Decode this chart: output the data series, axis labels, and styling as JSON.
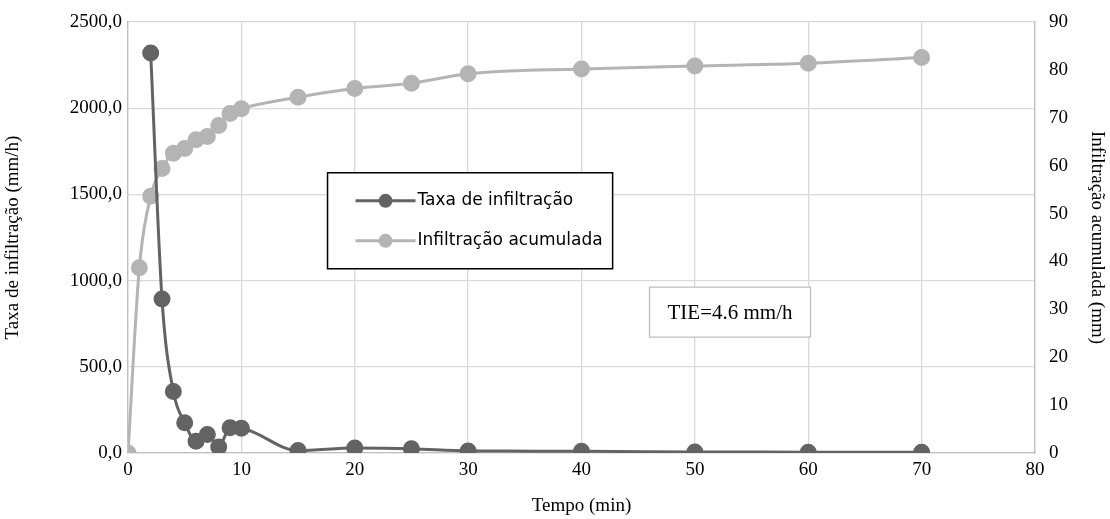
{
  "chart_data": {
    "type": "line",
    "xlabel": "Tempo (min)",
    "ylabel": "Taxa de infiltração (mm/h)",
    "y2label": "Infiltração acumulada (mm)",
    "x": [
      0,
      1,
      2,
      3,
      4,
      5,
      6,
      7,
      8,
      9,
      10,
      15,
      20,
      25,
      30,
      40,
      50,
      60,
      70
    ],
    "series": [
      {
        "name": "Taxa de infiltração",
        "color": "#636363",
        "x": [
          2,
          3,
          4,
          5,
          6,
          7,
          8,
          9,
          10,
          15,
          20,
          25,
          30,
          40,
          50,
          60,
          70
        ],
        "values": [
          2320,
          893,
          357,
          176,
          68,
          107,
          35,
          146,
          143,
          14,
          29,
          25,
          12,
          10,
          6,
          5,
          5
        ]
      },
      {
        "name": "Infiltração acumulada",
        "color": "#b4b4b4",
        "axis": "y2",
        "values": [
          0,
          38.7,
          53.6,
          59.4,
          62.6,
          63.6,
          65.4,
          66.1,
          68.4,
          70.9,
          71.9,
          74.3,
          76.1,
          77.2,
          79.2,
          80.2,
          80.8,
          81.4,
          82.6
        ]
      }
    ],
    "xlim": [
      0,
      80
    ],
    "xticks": [
      0,
      10,
      20,
      30,
      40,
      50,
      60,
      70,
      80
    ],
    "ylim": [
      0,
      2500
    ],
    "yticks": [
      {
        "value": 0,
        "label": "0,0"
      },
      {
        "value": 500,
        "label": "500,0"
      },
      {
        "value": 1000,
        "label": "1000,0"
      },
      {
        "value": 1500,
        "label": "1500,0"
      },
      {
        "value": 2000,
        "label": "2000,0"
      },
      {
        "value": 2500,
        "label": "2500,0"
      }
    ],
    "y2lim": [
      0,
      90
    ],
    "y2ticks": [
      0,
      10,
      20,
      30,
      40,
      50,
      60,
      70,
      80,
      90
    ],
    "annotations": [
      "TIE=4.6 mm/h"
    ],
    "grid": true,
    "legend": "center",
    "marker": "circle",
    "line_style": "solid"
  }
}
